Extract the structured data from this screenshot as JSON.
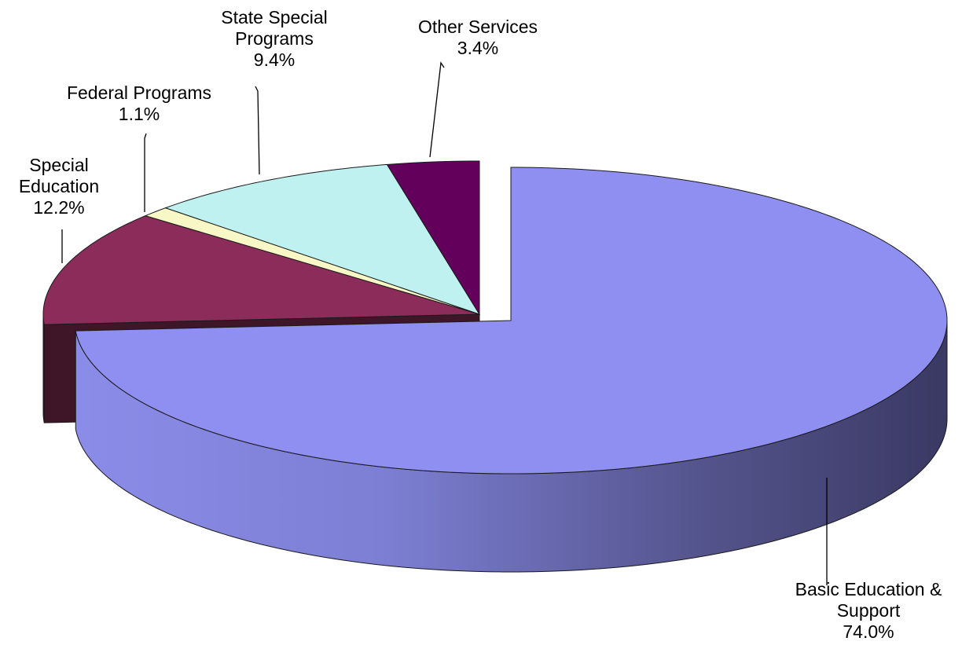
{
  "chart_data": {
    "type": "pie",
    "title": "",
    "style": "3d-exploded",
    "slices": [
      {
        "name": "Basic Education & Support",
        "label_lines": [
          "Basic Education &",
          "Support"
        ],
        "value": 74.0,
        "value_label": "74.0%",
        "color": "#8f8ff2",
        "side_color": "#3b3a66",
        "exploded": true
      },
      {
        "name": "Special Education",
        "label_lines": [
          "Special",
          "Education"
        ],
        "value": 12.2,
        "value_label": "12.2%",
        "color": "#8c2c5a",
        "side_color": "#3f1528",
        "exploded": false
      },
      {
        "name": "Federal Programs",
        "label_lines": [
          "Federal Programs"
        ],
        "value": 1.1,
        "value_label": "1.1%",
        "color": "#f8f7c6",
        "side_color": "#8a8a60",
        "exploded": false
      },
      {
        "name": "State Special Programs",
        "label_lines": [
          "State Special",
          "Programs"
        ],
        "value": 9.4,
        "value_label": "9.4%",
        "color": "#bff1f1",
        "side_color": "#6a9a9a",
        "exploded": false
      },
      {
        "name": "Other Services",
        "label_lines": [
          "Other Services"
        ],
        "value": 3.4,
        "value_label": "3.4%",
        "color": "#62005c",
        "side_color": "#300030",
        "exploded": false
      }
    ]
  }
}
